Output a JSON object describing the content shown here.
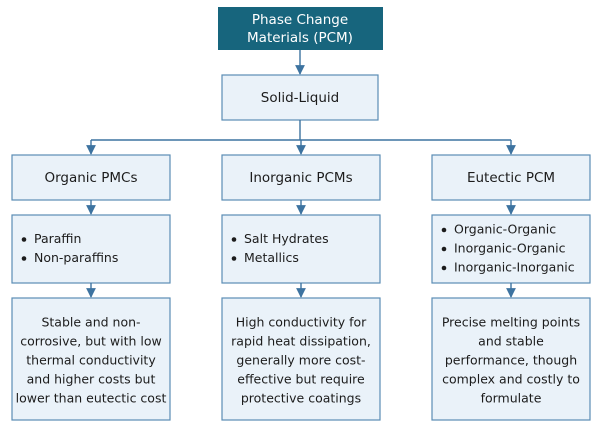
{
  "root": {
    "label_lines": [
      "Phase Change",
      "Materials (PCM)"
    ]
  },
  "level1": {
    "label": "Solid-Liquid"
  },
  "categories": [
    {
      "title": "Organic PMCs",
      "items": [
        "Paraffin",
        "Non-paraffins"
      ],
      "description_lines": [
        "Stable and non-",
        "corrosive, but with low",
        "thermal conductivity",
        "and higher costs but",
        "lower than eutectic cost"
      ]
    },
    {
      "title": "Inorganic PCMs",
      "items": [
        "Salt Hydrates",
        "Metallics"
      ],
      "description_lines": [
        "High conductivity for",
        "rapid heat dissipation,",
        "generally more cost-",
        "effective but require",
        "protective coatings"
      ]
    },
    {
      "title": "Eutectic PCM",
      "items": [
        "Organic-Organic",
        "Inorganic-Organic",
        "Inorganic-Inorganic"
      ],
      "description_lines": [
        "Precise melting points",
        "and stable",
        "performance, though",
        "complex and costly to",
        "formulate"
      ]
    }
  ]
}
